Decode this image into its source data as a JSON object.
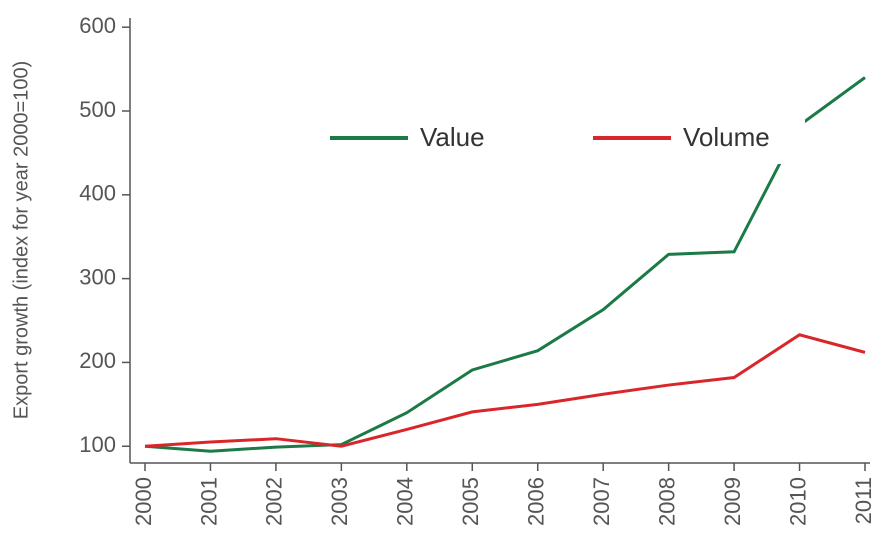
{
  "chart_data": {
    "type": "line",
    "y_label": "Export growth (index for year 2000=100)",
    "categories": [
      "2000",
      "2001",
      "2002",
      "2003",
      "2004",
      "2005",
      "2006",
      "2007",
      "2008",
      "2009",
      "2010",
      "2011"
    ],
    "series": [
      {
        "name": "Value",
        "color": "#1b7a45",
        "values": [
          100,
          94,
          99,
          102,
          140,
          191,
          214,
          263,
          329,
          332,
          483,
          540
        ]
      },
      {
        "name": "Volume",
        "color": "#d9262b",
        "values": [
          100,
          105,
          109,
          100,
          120,
          141,
          150,
          162,
          173,
          182,
          233,
          212
        ]
      }
    ],
    "ylim": [
      80,
      605
    ],
    "yticks": [
      100,
      200,
      300,
      400,
      500,
      600
    ]
  }
}
